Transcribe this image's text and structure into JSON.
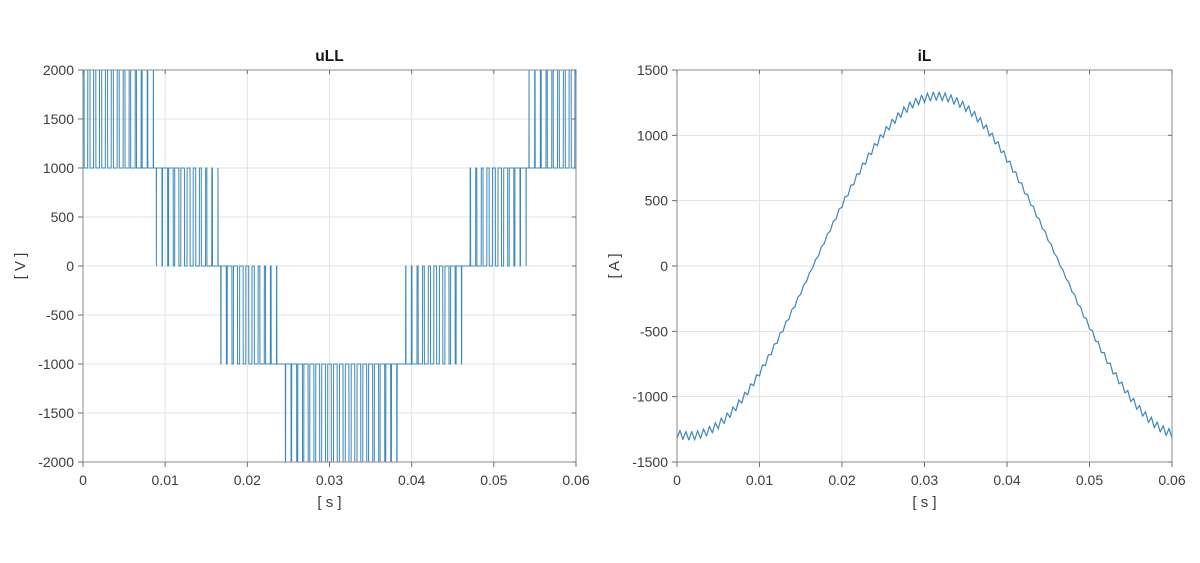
{
  "figure": {
    "background": "#ffffff"
  },
  "style": {
    "line_color": "#3a87bd",
    "grid_color": "#e3e3e3",
    "axis_color": "#898989",
    "tick_color": "#6f6f6f",
    "tick_label_color": "#3c3c3c",
    "title_color": "#161616",
    "axis_label_color": "#3c3c3c"
  },
  "chart_data": [
    {
      "type": "line",
      "title": "uLL",
      "xlabel": "[ s ]",
      "ylabel": "[ V ]",
      "xlim": [
        0,
        0.06
      ],
      "ylim": [
        -2000,
        2000
      ],
      "xticks": [
        0,
        0.01,
        0.02,
        0.03,
        0.04,
        0.05,
        0.06
      ],
      "yticks": [
        -2000,
        -1500,
        -1000,
        -500,
        0,
        500,
        1000,
        1500,
        2000
      ],
      "grid": true,
      "legend_position": "none",
      "waveform": {
        "kind": "multilevel_pwm",
        "levels": [
          -2000,
          -1000,
          0,
          1000,
          2000
        ],
        "level_step": 1000,
        "carrier_hz": 1400,
        "reference": {
          "shape": "cosine",
          "amplitude": 1400,
          "offset": 0,
          "period_s": 0.06,
          "peak_time_s": 0.0015
        }
      },
      "level_band_times_s": [
        {
          "band": [
            1000,
            2000
          ],
          "from": 0,
          "to": 0.0089
        },
        {
          "band": [
            0,
            1000
          ],
          "from": 0.0089,
          "to": 0.0165
        },
        {
          "band": [
            -1000,
            0
          ],
          "from": 0.0165,
          "to": 0.0241
        },
        {
          "band": [
            -2000,
            -1000
          ],
          "from": 0.0241,
          "to": 0.0389
        },
        {
          "band": [
            -1000,
            0
          ],
          "from": 0.0389,
          "to": 0.0465
        },
        {
          "band": [
            0,
            1000
          ],
          "from": 0.0465,
          "to": 0.0541
        },
        {
          "band": [
            1000,
            2000
          ],
          "from": 0.0541,
          "to": 0.06
        }
      ]
    },
    {
      "type": "line",
      "title": "iL",
      "xlabel": "[ s ]",
      "ylabel": "[ A ]",
      "xlim": [
        0,
        0.06
      ],
      "ylim": [
        -1500,
        1500
      ],
      "xticks": [
        0,
        0.01,
        0.02,
        0.03,
        0.04,
        0.05,
        0.06
      ],
      "yticks": [
        -1500,
        -1000,
        -500,
        0,
        500,
        1000,
        1500
      ],
      "grid": true,
      "legend_position": "none",
      "waveform": {
        "kind": "fundamental_plus_ripple",
        "fundamental": {
          "shape": "cosine",
          "amplitude": -1300,
          "offset": 0,
          "period_s": 0.06,
          "peak_time_s": 0.0015
        },
        "ripple": {
          "carrier_hz": 1400,
          "amp_min_a": 8,
          "amp_extra_a": 24
        }
      },
      "key_values": {
        "value_at_0s_a": -1284,
        "peak_a": 1300,
        "peak_time_s": 0.0315,
        "zero_crossings_s": [
          0.0165,
          0.0465
        ]
      }
    }
  ]
}
